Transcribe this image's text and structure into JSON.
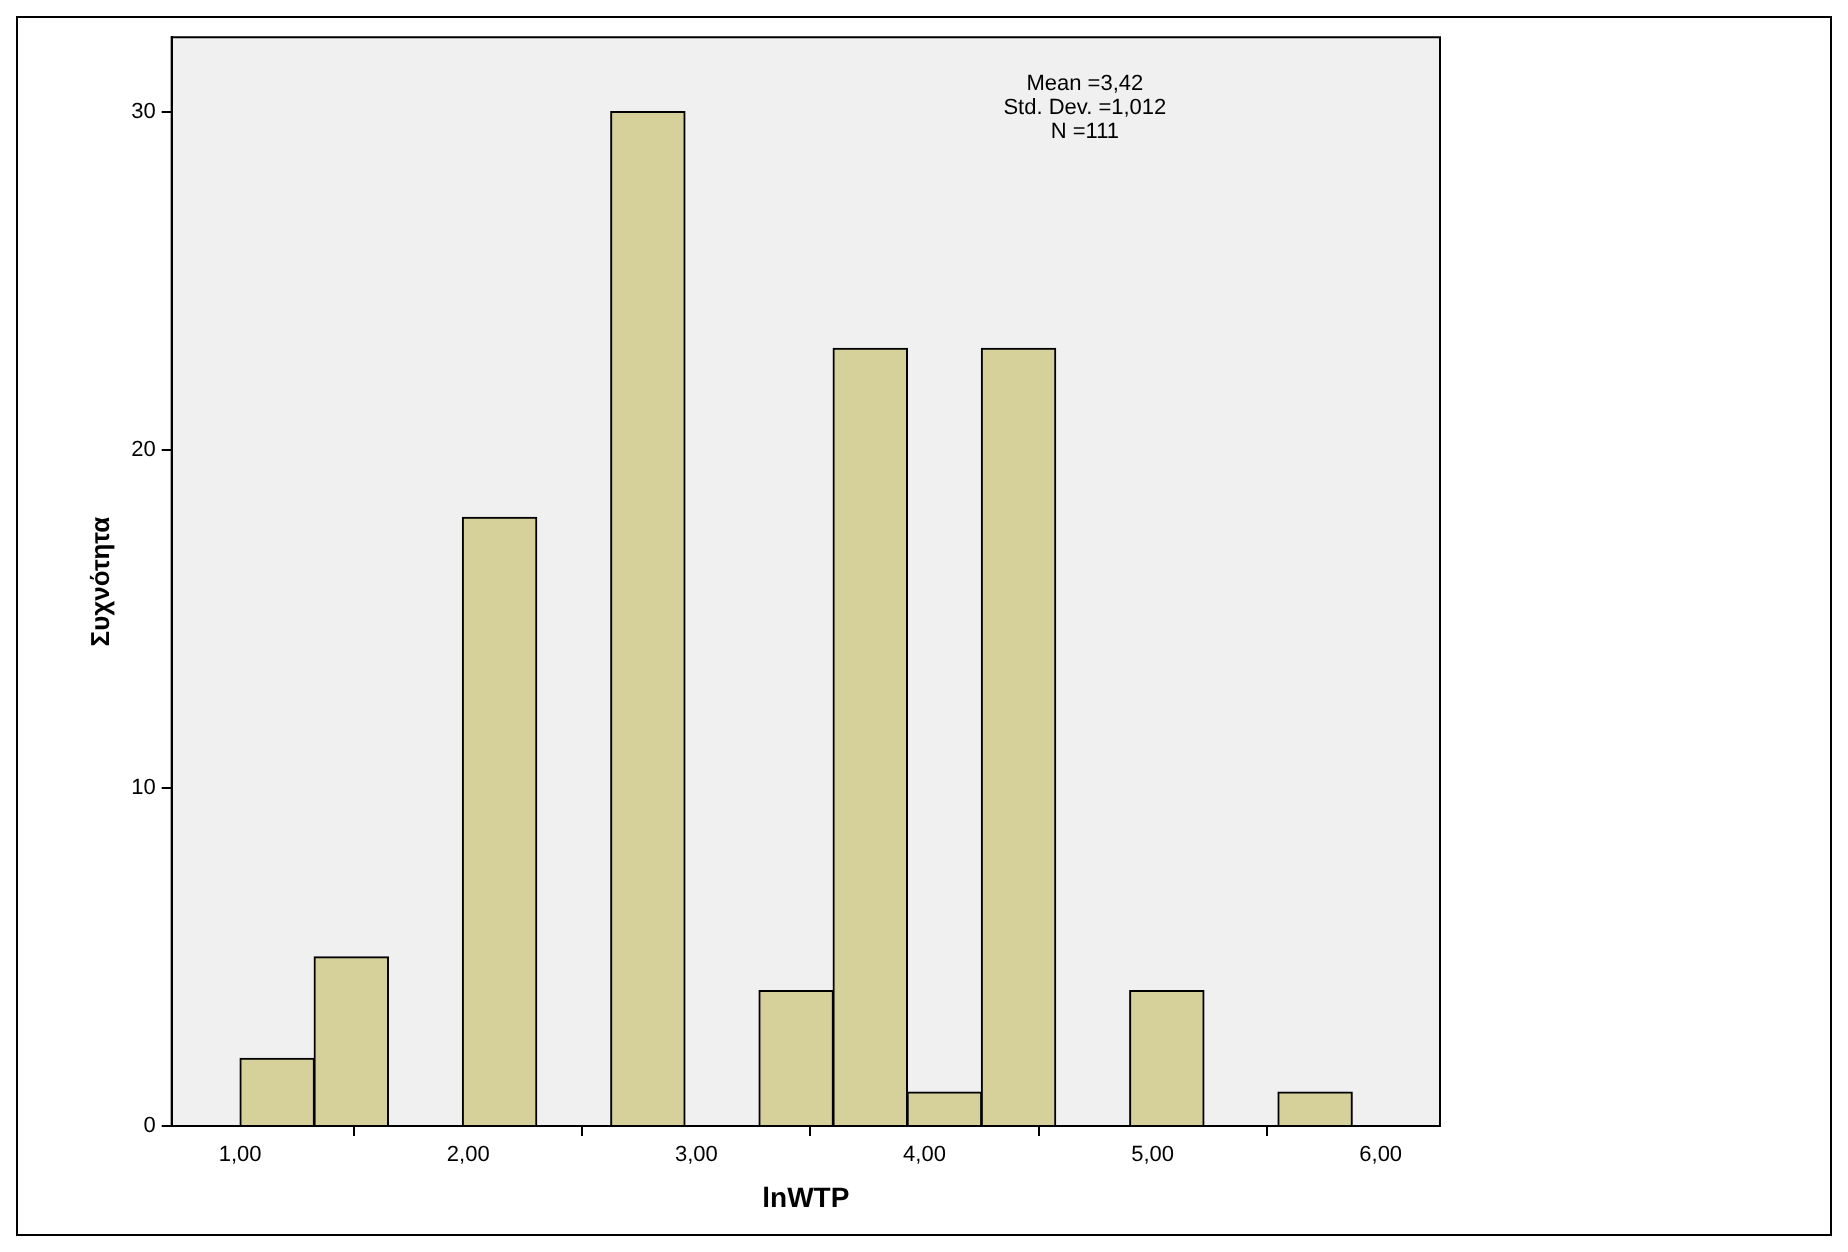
{
  "chart_data": {
    "type": "histogram",
    "xlabel": "lnWTP",
    "ylabel": "Συχνότητα",
    "bins": [
      1.0,
      1.325,
      1.65,
      1.975,
      2.3,
      2.625,
      2.95,
      3.275,
      3.6,
      3.925,
      4.25,
      4.575,
      4.9,
      5.225,
      5.55,
      5.875
    ],
    "values": [
      2,
      5,
      0,
      18,
      0,
      30,
      0,
      4,
      23,
      1,
      23,
      0,
      4,
      0,
      1
    ],
    "color": "#d6d09a",
    "xlim": [
      0.7,
      6.26
    ],
    "xticks": [
      {
        "value": 1,
        "label": "1,00"
      },
      {
        "value": 2,
        "label": "2,00"
      },
      {
        "value": 3,
        "label": "3,00"
      },
      {
        "value": 4,
        "label": "4,00"
      },
      {
        "value": 5,
        "label": "5,00"
      },
      {
        "value": 6,
        "label": "6,00"
      }
    ],
    "ylim": [
      0,
      32.2
    ],
    "yticks": [
      0,
      10,
      20,
      30
    ],
    "grid": false,
    "legend": false,
    "annotations": [
      "Mean =3,42",
      "Std. Dev. =1,012",
      "N =111"
    ]
  }
}
